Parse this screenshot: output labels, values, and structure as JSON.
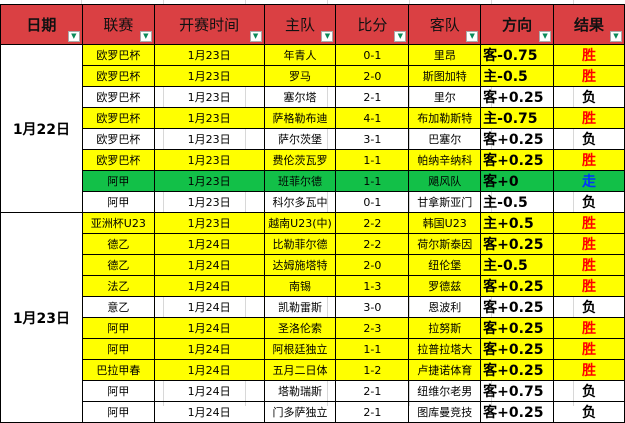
{
  "headers": [
    "日期",
    "联赛",
    "开赛时间",
    "主队",
    "比分",
    "客队",
    "方向",
    "结果"
  ],
  "colors": {
    "header": "#da4043",
    "highlight": "#ffff00",
    "push": "#12c048",
    "win": "#ff0000",
    "draw": "#0033ff",
    "loss": "#000000"
  },
  "groups": [
    {
      "date": "1月22日",
      "rows": [
        {
          "league": "欧罗巴杯",
          "time": "1月23日",
          "home": "年青人",
          "score": "0-1",
          "away": "里昂",
          "dir": "客-0.75",
          "result": "胜",
          "style": "y"
        },
        {
          "league": "欧罗巴杯",
          "time": "1月23日",
          "home": "罗马",
          "score": "2-0",
          "away": "斯图加特",
          "dir": "主-0.5",
          "result": "胜",
          "style": "y"
        },
        {
          "league": "欧罗巴杯",
          "time": "1月23日",
          "home": "塞尔塔",
          "score": "2-1",
          "away": "里尔",
          "dir": "客+0.25",
          "result": "负",
          "style": ""
        },
        {
          "league": "欧罗巴杯",
          "time": "1月23日",
          "home": "萨格勒布迪",
          "score": "4-1",
          "away": "布加勒斯特",
          "dir": "主-0.75",
          "result": "胜",
          "style": "y"
        },
        {
          "league": "欧罗巴杯",
          "time": "1月23日",
          "home": "萨尔茨堡",
          "score": "3-1",
          "away": "巴塞尔",
          "dir": "客+0.25",
          "result": "负",
          "style": ""
        },
        {
          "league": "欧罗巴杯",
          "time": "1月23日",
          "home": "费伦茨瓦罗",
          "score": "1-1",
          "away": "帕纳辛纳科",
          "dir": "客+0.25",
          "result": "胜",
          "style": "y"
        },
        {
          "league": "阿甲",
          "time": "1月23日",
          "home": "班菲尔德",
          "score": "1-1",
          "away": "飓风队",
          "dir": "客+0",
          "result": "走",
          "style": "g"
        },
        {
          "league": "阿甲",
          "time": "1月23日",
          "home": "科尔多瓦中",
          "score": "0-1",
          "away": "甘拿斯亚门",
          "dir": "主-0.5",
          "result": "负",
          "style": ""
        }
      ]
    },
    {
      "date": "1月23日",
      "rows": [
        {
          "league": "亚洲杯U23",
          "time": "1月23日",
          "home": "越南U23(中)",
          "score": "2-2",
          "away": "韩国U23",
          "dir": "主+0.5",
          "result": "胜",
          "style": "y"
        },
        {
          "league": "德乙",
          "time": "1月24日",
          "home": "比勒菲尔德",
          "score": "2-2",
          "away": "荷尔斯泰因",
          "dir": "客+0.25",
          "result": "胜",
          "style": "y"
        },
        {
          "league": "德乙",
          "time": "1月24日",
          "home": "达姆施塔特",
          "score": "2-0",
          "away": "纽伦堡",
          "dir": "主-0.5",
          "result": "胜",
          "style": "y"
        },
        {
          "league": "法乙",
          "time": "1月24日",
          "home": "南锡",
          "score": "1-3",
          "away": "罗德兹",
          "dir": "客+0.25",
          "result": "胜",
          "style": "y"
        },
        {
          "league": "意乙",
          "time": "1月24日",
          "home": "凯勒雷斯",
          "score": "3-0",
          "away": "恩波利",
          "dir": "客+0.25",
          "result": "负",
          "style": ""
        },
        {
          "league": "阿甲",
          "time": "1月24日",
          "home": "圣洛伦索",
          "score": "2-3",
          "away": "拉努斯",
          "dir": "客+0.25",
          "result": "胜",
          "style": "y"
        },
        {
          "league": "阿甲",
          "time": "1月24日",
          "home": "阿根廷独立",
          "score": "1-1",
          "away": "拉普拉塔大",
          "dir": "客+0.25",
          "result": "胜",
          "style": "y"
        },
        {
          "league": "巴拉甲春",
          "time": "1月24日",
          "home": "五月二日体",
          "score": "1-2",
          "away": "卢捷诺体育",
          "dir": "客+0.25",
          "result": "胜",
          "style": "y"
        },
        {
          "league": "阿甲",
          "time": "1月24日",
          "home": "塔勒瑞斯",
          "score": "2-1",
          "away": "纽维尔老男",
          "dir": "客+0.75",
          "result": "负",
          "style": ""
        },
        {
          "league": "阿甲",
          "time": "1月24日",
          "home": "门多萨独立",
          "score": "2-1",
          "away": "图库曼竞技",
          "dir": "客+0.25",
          "result": "负",
          "style": ""
        }
      ]
    }
  ]
}
